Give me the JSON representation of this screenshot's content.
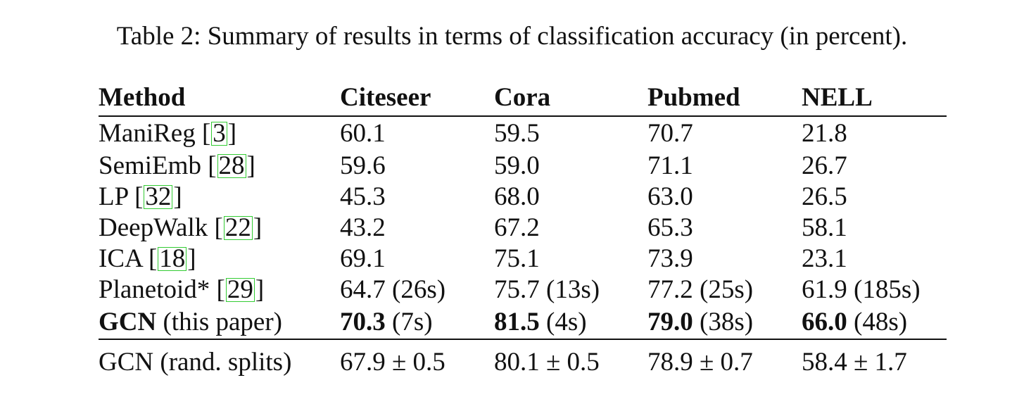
{
  "caption": "Table 2: Summary of results in terms of classification accuracy (in percent).",
  "table": {
    "headers": [
      "Method",
      "Citeseer",
      "Cora",
      "Pubmed",
      "NELL"
    ],
    "rows": [
      {
        "method": "ManiReg",
        "cite": "3",
        "values": [
          "60.1",
          "59.5",
          "70.7",
          "21.8"
        ]
      },
      {
        "method": "SemiEmb",
        "cite": "28",
        "values": [
          "59.6",
          "59.0",
          "71.1",
          "26.7"
        ]
      },
      {
        "method": "LP",
        "cite": "32",
        "values": [
          "45.3",
          "68.0",
          "63.0",
          "26.5"
        ]
      },
      {
        "method": "DeepWalk",
        "cite": "22",
        "values": [
          "43.2",
          "67.2",
          "65.3",
          "58.1"
        ]
      },
      {
        "method": "ICA",
        "cite": "18",
        "values": [
          "69.1",
          "75.1",
          "73.9",
          "23.1"
        ]
      },
      {
        "method": "Planetoid*",
        "cite": "29",
        "values": [
          "64.7 (26s)",
          "75.7 (13s)",
          "77.2 (25s)",
          "61.9 (185s)"
        ]
      }
    ],
    "gcn_row": {
      "method_bold": "GCN",
      "method_rest": " (this paper)",
      "values": [
        {
          "bold": "70.3",
          "rest": " (7s)"
        },
        {
          "bold": "81.5",
          "rest": " (4s)"
        },
        {
          "bold": "79.0",
          "rest": " (38s)"
        },
        {
          "bold": "66.0",
          "rest": " (48s)"
        }
      ]
    },
    "rand_row": {
      "method": "GCN (rand. splits)",
      "values": [
        "67.9 ± 0.5",
        "80.1 ± 0.5",
        "78.9 ± 0.7",
        "58.4 ± 1.7"
      ]
    }
  }
}
